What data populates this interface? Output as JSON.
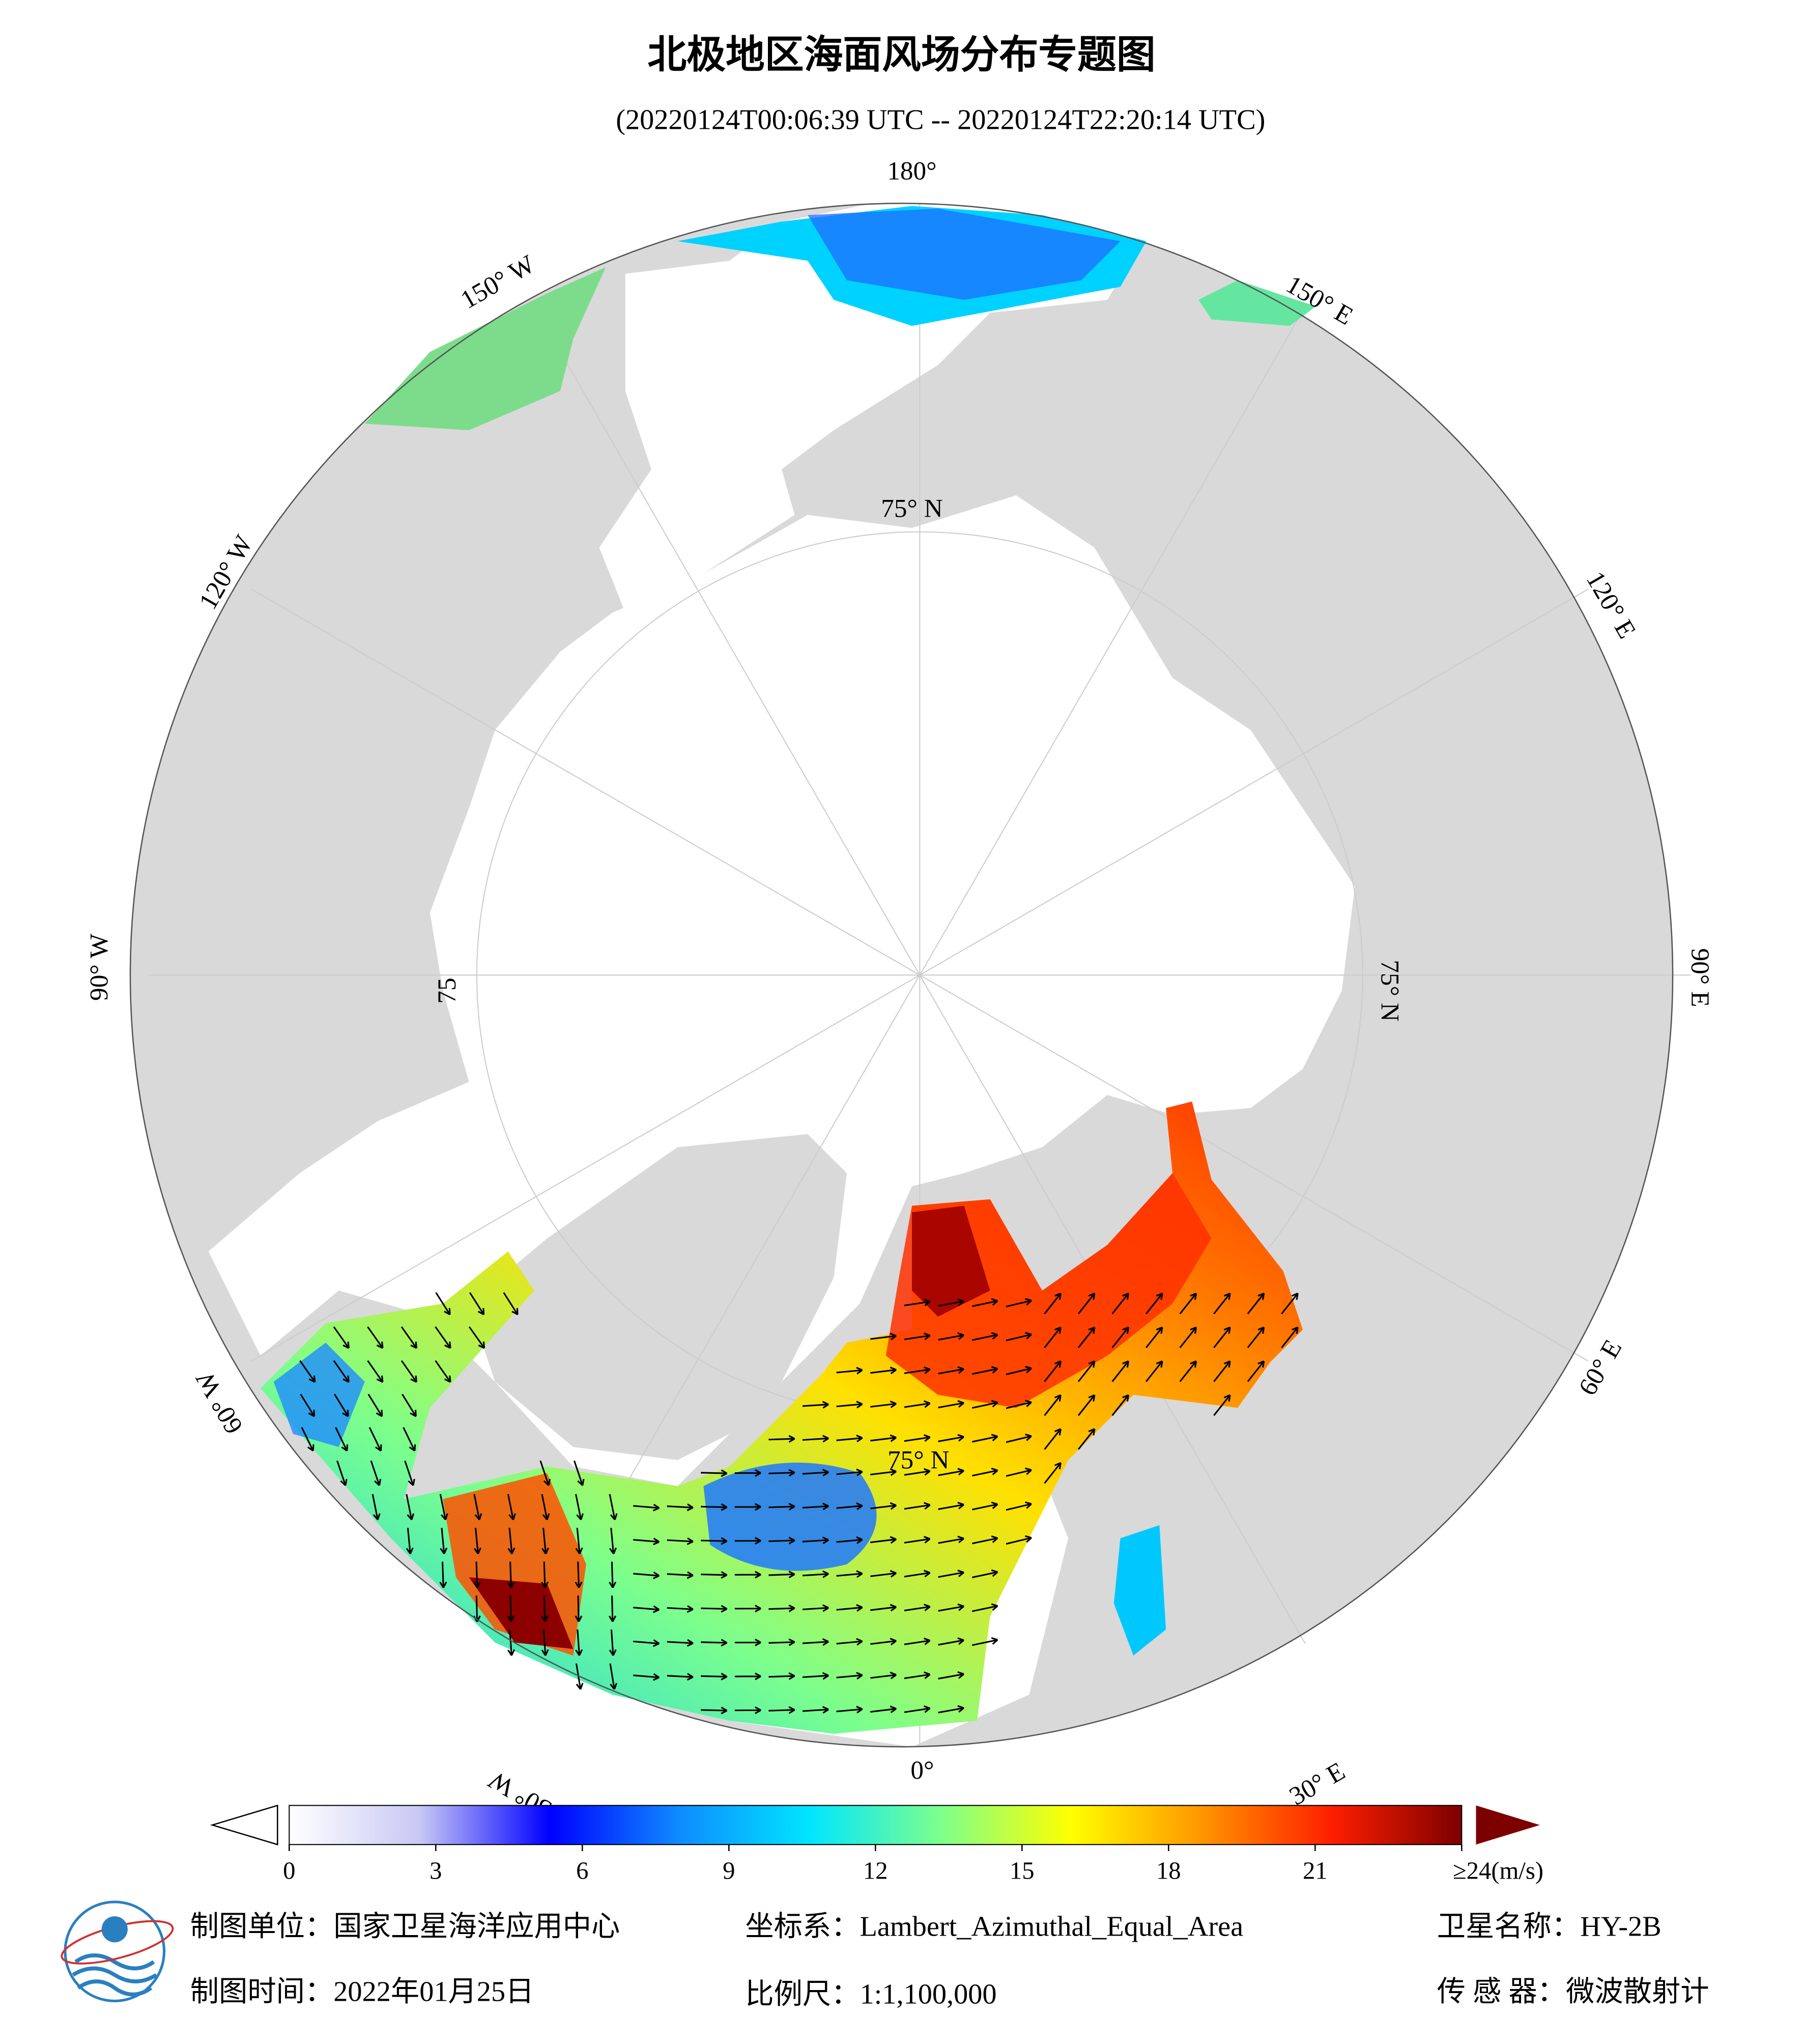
{
  "header": {
    "title": "北极地区海面风场分布专题图",
    "subtitle": "(20220124T00:06:39 UTC -- 20220124T22:20:14 UTC)"
  },
  "map": {
    "graticule_labels": [
      "180°",
      "150° W",
      "120° W",
      "90° W",
      "60° W",
      "30° W",
      "0°",
      "30° E",
      "60° E",
      "90° E",
      "120° E",
      "150° E",
      "75° N",
      "75° N",
      "75",
      "75° N"
    ]
  },
  "colorbar": {
    "range": [
      0,
      24
    ],
    "colors": [
      "#ffffff",
      "#c8c8f5",
      "#0000ff",
      "#0f8cff",
      "#00e6ff",
      "#7dff8c",
      "#ffff00",
      "#ff9600",
      "#ff1e00",
      "#7d0000"
    ],
    "ticks": [
      0,
      3,
      6,
      9,
      12,
      15,
      18,
      21,
      {
        "value": 24,
        "label": "≥24(m/s)"
      }
    ]
  },
  "footer": {
    "unit": "制图单位：国家卫星海洋应用中心",
    "crs": "坐标系：Lambert_Azimuthal_Equal_Area",
    "satellite": "卫星名称：HY-2B",
    "date": "制图时间：2022年01月25日",
    "scale": "比例尺：1:1,100,000",
    "sensor": "传 感 器：微波散射计"
  }
}
